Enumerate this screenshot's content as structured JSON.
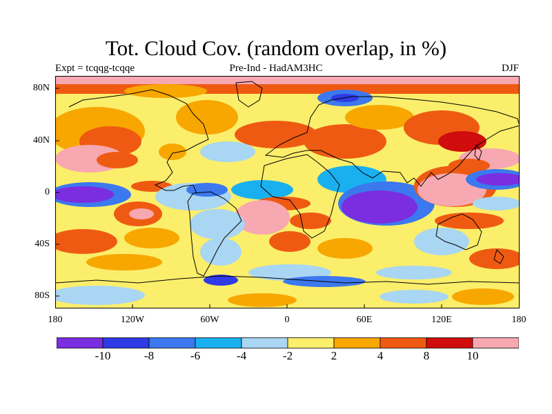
{
  "title": "Tot. Cloud Cov. (random overlap, in %)",
  "subtitle": {
    "left": "Expt = tcqqg-tcqqe",
    "center": "Pre-Ind - HadAM3HC",
    "right": "DJF"
  },
  "axes": {
    "lat_labels": [
      "80N",
      "40N",
      "0",
      "40S",
      "80S"
    ],
    "lon_labels": [
      "180",
      "120W",
      "60W",
      "0",
      "60E",
      "120E",
      "180"
    ]
  },
  "colorbar": {
    "colors": [
      "#7b2de0",
      "#2e3be6",
      "#3c78ee",
      "#1ab0f0",
      "#a9d6f2",
      "#fbee6b",
      "#f7a700",
      "#ef5a12",
      "#d10c0c",
      "#f7a8b0"
    ],
    "labels": [
      "-10",
      "-8",
      "-6",
      "-4",
      "-2",
      "2",
      "4",
      "8",
      "10"
    ]
  }
}
